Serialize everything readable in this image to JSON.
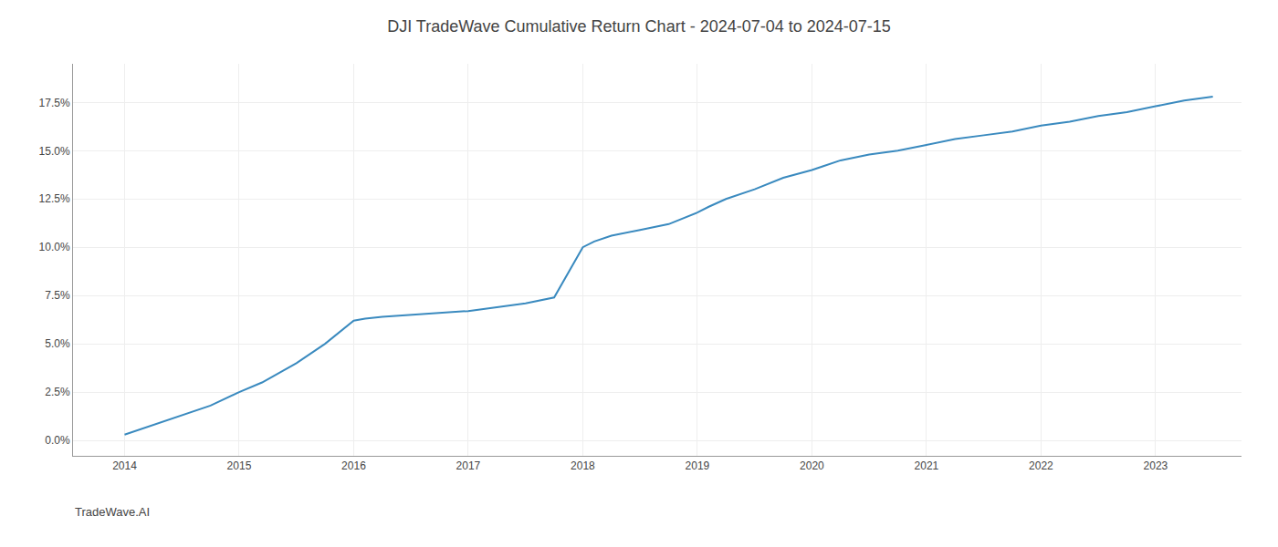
{
  "chart_data": {
    "type": "line",
    "title": "DJI TradeWave Cumulative Return Chart - 2024-07-04 to 2024-07-15",
    "annotations": [
      {
        "text": "TradeWave.AI"
      }
    ],
    "x": [
      2014.0,
      2014.1,
      2014.3,
      2014.5,
      2014.75,
      2015.0,
      2015.2,
      2015.5,
      2015.75,
      2016.0,
      2016.1,
      2016.25,
      2016.5,
      2016.75,
      2017.0,
      2017.25,
      2017.5,
      2017.75,
      2018.0,
      2018.1,
      2018.25,
      2018.5,
      2018.75,
      2019.0,
      2019.1,
      2019.25,
      2019.5,
      2019.75,
      2020.0,
      2020.1,
      2020.25,
      2020.5,
      2020.75,
      2021.0,
      2021.25,
      2021.5,
      2021.75,
      2022.0,
      2022.25,
      2022.5,
      2022.75,
      2023.0,
      2023.25,
      2023.5
    ],
    "values": [
      0.003,
      0.005,
      0.009,
      0.013,
      0.018,
      0.025,
      0.03,
      0.04,
      0.05,
      0.062,
      0.063,
      0.064,
      0.065,
      0.066,
      0.067,
      0.069,
      0.071,
      0.074,
      0.1,
      0.103,
      0.106,
      0.109,
      0.112,
      0.118,
      0.121,
      0.125,
      0.13,
      0.136,
      0.14,
      0.142,
      0.145,
      0.148,
      0.15,
      0.153,
      0.156,
      0.158,
      0.16,
      0.163,
      0.165,
      0.168,
      0.17,
      0.173,
      0.176,
      0.178
    ],
    "color": "#3a8abf",
    "xlim": [
      2013.55,
      2023.75
    ],
    "xticks": [
      2014,
      2015,
      2016,
      2017,
      2018,
      2019,
      2020,
      2021,
      2022,
      2023
    ],
    "ylim": [
      -0.008,
      0.195
    ],
    "yticks": [
      {
        "value": 0.0,
        "label": "0.0%"
      },
      {
        "value": 0.025,
        "label": "2.5%"
      },
      {
        "value": 0.05,
        "label": "5.0%"
      },
      {
        "value": 0.075,
        "label": "7.5%"
      },
      {
        "value": 0.1,
        "label": "10.0%"
      },
      {
        "value": 0.125,
        "label": "12.5%"
      },
      {
        "value": 0.15,
        "label": "15.0%"
      },
      {
        "value": 0.175,
        "label": "17.5%"
      }
    ],
    "grid": true
  }
}
